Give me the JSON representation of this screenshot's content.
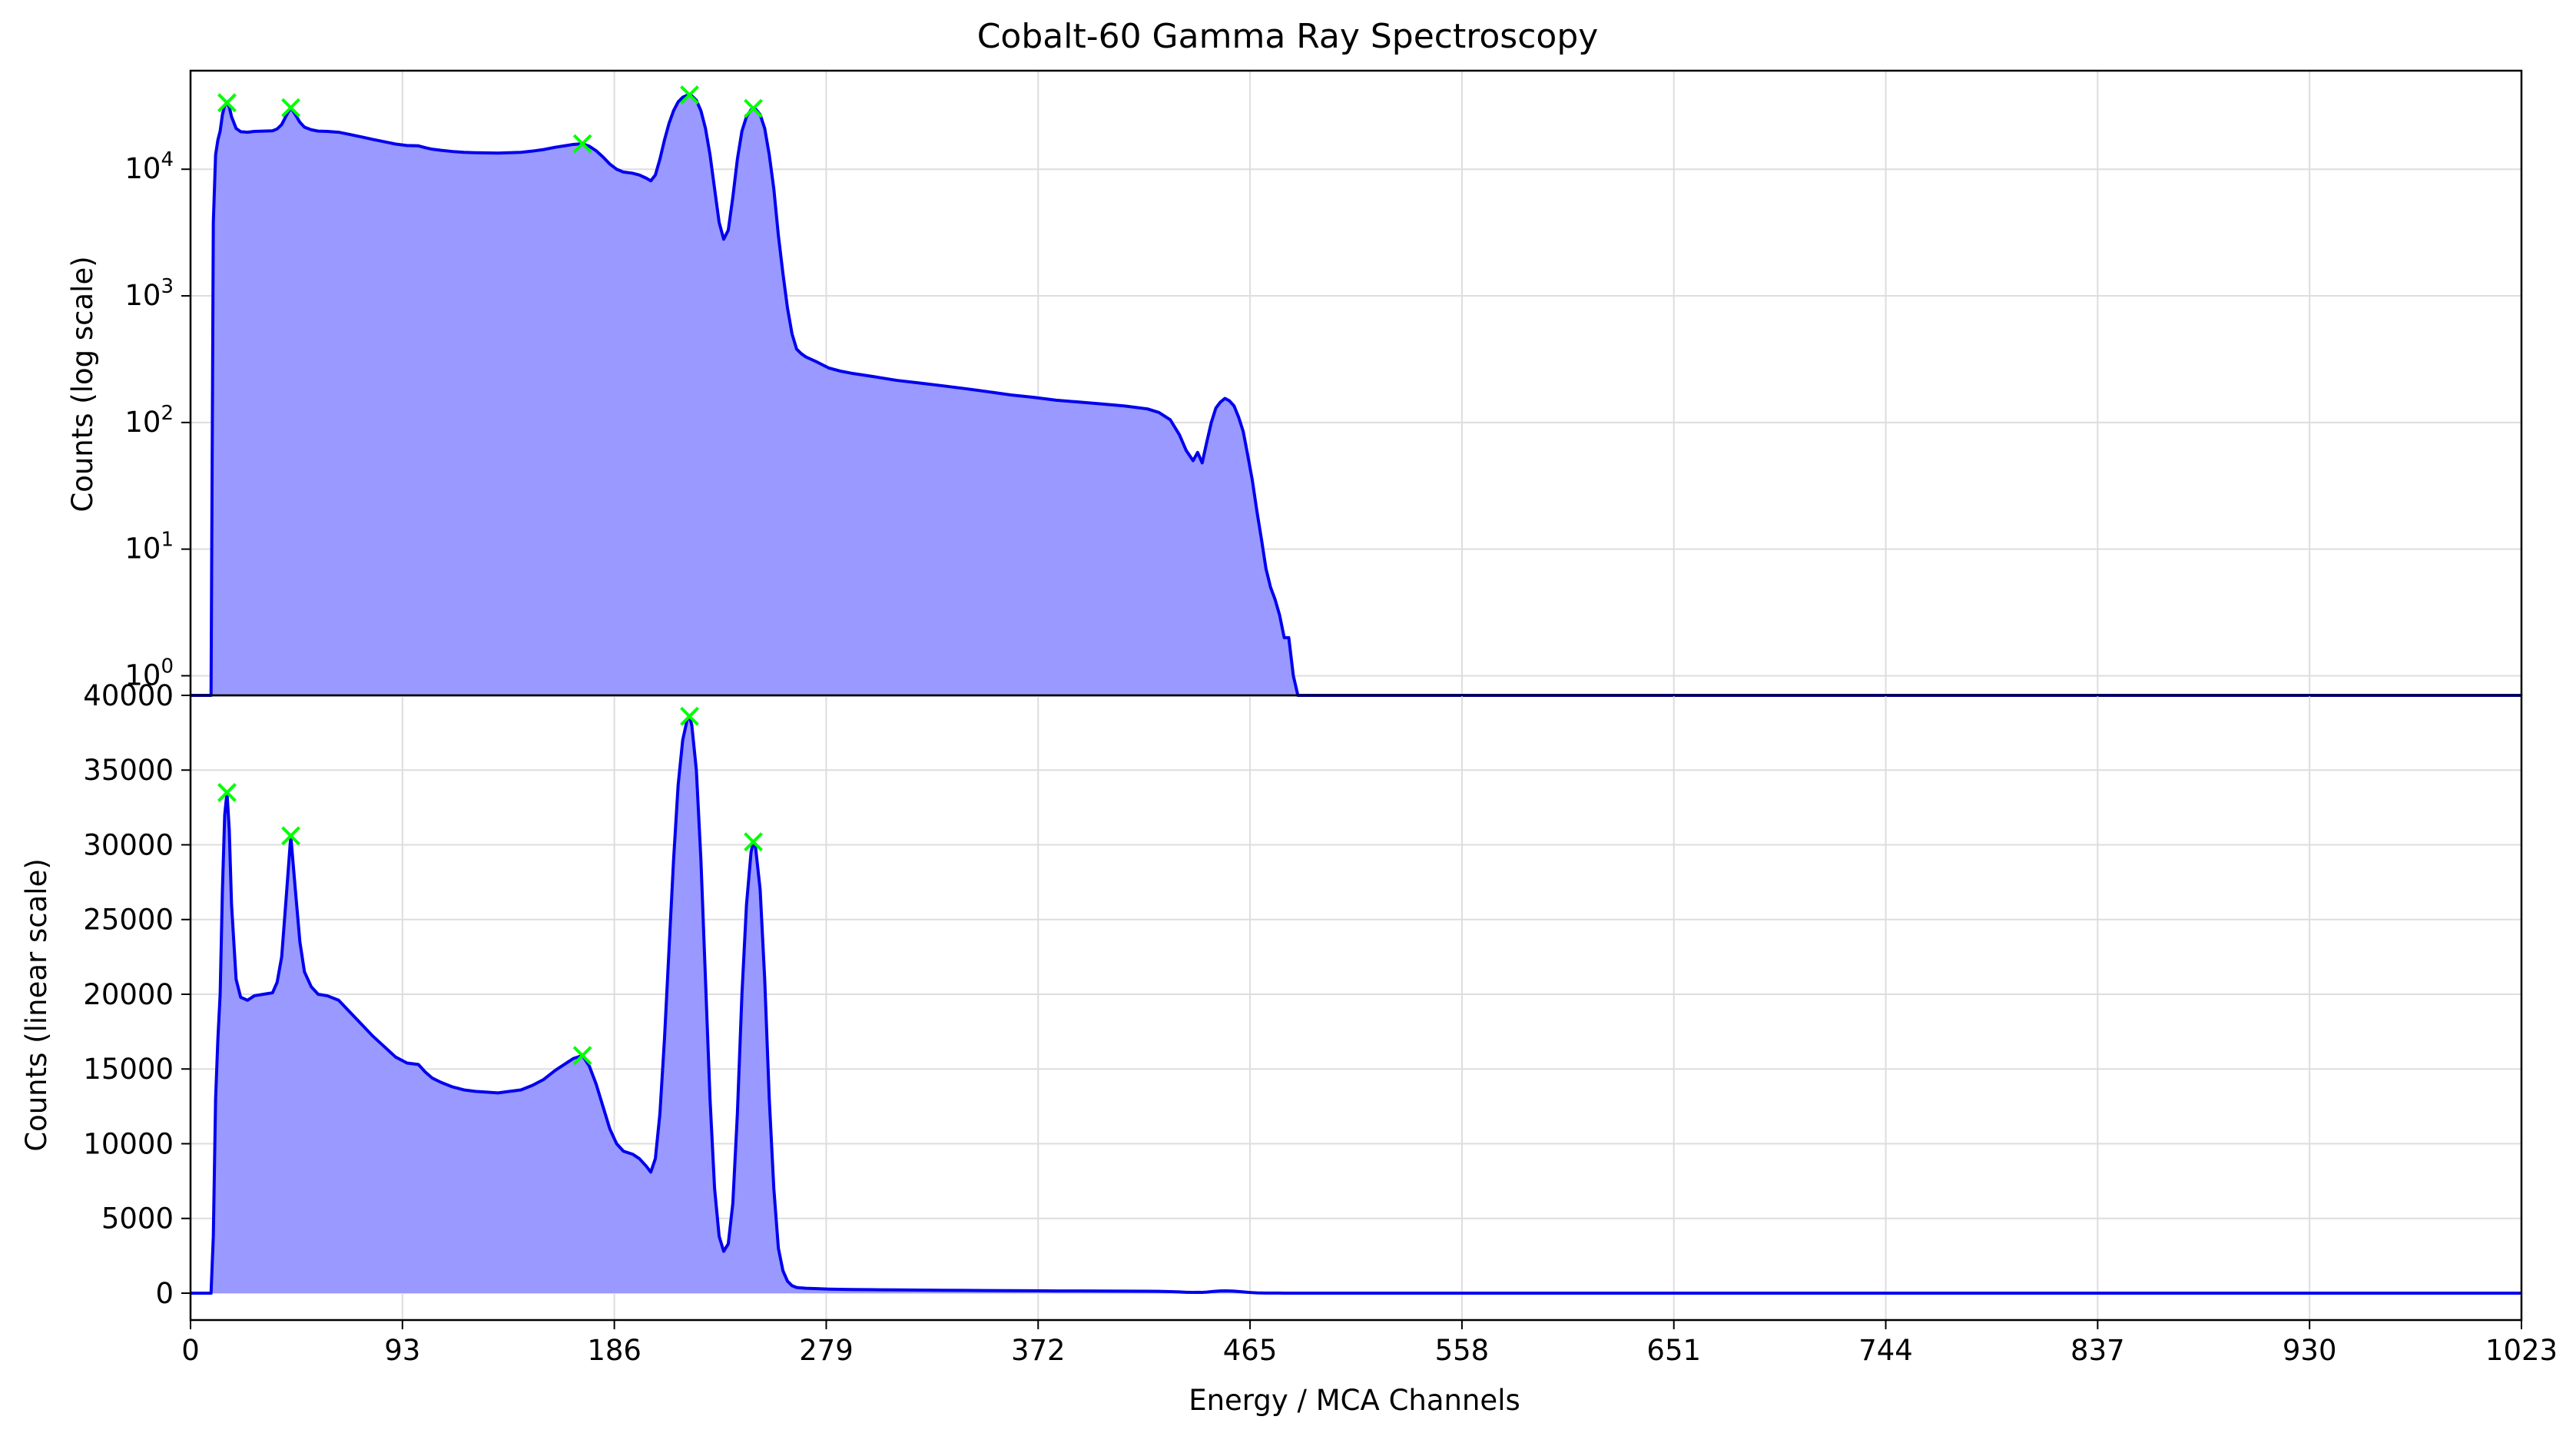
{
  "chart_data": {
    "type": "area",
    "title": "Cobalt-60 Gamma Ray Spectroscopy",
    "xlabel": "Energy / MCA Channels",
    "xlim": [
      0,
      1023
    ],
    "x_ticks": [
      0,
      93,
      186,
      279,
      372,
      465,
      558,
      651,
      744,
      837,
      930,
      1023
    ],
    "grid": true,
    "colors": {
      "line": "#0000ee",
      "fill": "#9999ff",
      "peak_marker": "#00ff00"
    },
    "peaks": [
      {
        "x": 16,
        "y": 33500
      },
      {
        "x": 44,
        "y": 30600
      },
      {
        "x": 172,
        "y": 15900
      },
      {
        "x": 219,
        "y": 38600
      },
      {
        "x": 247,
        "y": 30200
      }
    ],
    "spectrum_points": [
      [
        0,
        0
      ],
      [
        8,
        0
      ],
      [
        9,
        0
      ],
      [
        10,
        3800
      ],
      [
        11,
        13000
      ],
      [
        12,
        17000
      ],
      [
        13,
        20000
      ],
      [
        14,
        27000
      ],
      [
        15,
        32000
      ],
      [
        16,
        33500
      ],
      [
        17,
        31000
      ],
      [
        18,
        26000
      ],
      [
        20,
        21000
      ],
      [
        22,
        19800
      ],
      [
        25,
        19600
      ],
      [
        28,
        19900
      ],
      [
        32,
        20000
      ],
      [
        36,
        20100
      ],
      [
        38,
        20800
      ],
      [
        40,
        22500
      ],
      [
        42,
        26500
      ],
      [
        44,
        30600
      ],
      [
        46,
        27000
      ],
      [
        48,
        23500
      ],
      [
        50,
        21500
      ],
      [
        53,
        20500
      ],
      [
        56,
        20000
      ],
      [
        60,
        19900
      ],
      [
        65,
        19600
      ],
      [
        70,
        18800
      ],
      [
        75,
        18000
      ],
      [
        80,
        17200
      ],
      [
        85,
        16500
      ],
      [
        90,
        15800
      ],
      [
        95,
        15400
      ],
      [
        100,
        15300
      ],
      [
        103,
        14800
      ],
      [
        106,
        14400
      ],
      [
        110,
        14100
      ],
      [
        115,
        13800
      ],
      [
        120,
        13600
      ],
      [
        125,
        13500
      ],
      [
        130,
        13450
      ],
      [
        135,
        13400
      ],
      [
        140,
        13500
      ],
      [
        145,
        13600
      ],
      [
        150,
        13900
      ],
      [
        155,
        14300
      ],
      [
        160,
        14900
      ],
      [
        165,
        15400
      ],
      [
        168,
        15700
      ],
      [
        172,
        15900
      ],
      [
        175,
        15200
      ],
      [
        178,
        14000
      ],
      [
        181,
        12500
      ],
      [
        184,
        11000
      ],
      [
        187,
        10000
      ],
      [
        190,
        9500
      ],
      [
        194,
        9300
      ],
      [
        197,
        9000
      ],
      [
        200,
        8500
      ],
      [
        202,
        8100
      ],
      [
        204,
        9000
      ],
      [
        206,
        12000
      ],
      [
        208,
        17000
      ],
      [
        210,
        23000
      ],
      [
        212,
        29000
      ],
      [
        214,
        34000
      ],
      [
        216,
        37000
      ],
      [
        218,
        38400
      ],
      [
        219,
        38600
      ],
      [
        220,
        38000
      ],
      [
        222,
        35000
      ],
      [
        224,
        29000
      ],
      [
        226,
        21000
      ],
      [
        228,
        13000
      ],
      [
        230,
        7000
      ],
      [
        232,
        3800
      ],
      [
        234,
        2800
      ],
      [
        236,
        3300
      ],
      [
        238,
        6000
      ],
      [
        240,
        12000
      ],
      [
        242,
        20000
      ],
      [
        244,
        26000
      ],
      [
        246,
        29500
      ],
      [
        247,
        30200
      ],
      [
        248,
        29800
      ],
      [
        250,
        27000
      ],
      [
        252,
        21000
      ],
      [
        254,
        13000
      ],
      [
        256,
        7000
      ],
      [
        258,
        3000
      ],
      [
        260,
        1500
      ],
      [
        262,
        800
      ],
      [
        264,
        500
      ],
      [
        266,
        380
      ],
      [
        268,
        350
      ],
      [
        270,
        330
      ],
      [
        275,
        300
      ],
      [
        280,
        270
      ],
      [
        285,
        255
      ],
      [
        290,
        245
      ],
      [
        300,
        230
      ],
      [
        310,
        215
      ],
      [
        320,
        205
      ],
      [
        330,
        195
      ],
      [
        340,
        185
      ],
      [
        350,
        175
      ],
      [
        360,
        165
      ],
      [
        370,
        158
      ],
      [
        380,
        150
      ],
      [
        390,
        145
      ],
      [
        400,
        140
      ],
      [
        410,
        135
      ],
      [
        420,
        128
      ],
      [
        425,
        120
      ],
      [
        430,
        105
      ],
      [
        434,
        80
      ],
      [
        437,
        60
      ],
      [
        440,
        50
      ],
      [
        442,
        58
      ],
      [
        444,
        48
      ],
      [
        446,
        70
      ],
      [
        448,
        100
      ],
      [
        450,
        130
      ],
      [
        452,
        145
      ],
      [
        454,
        155
      ],
      [
        456,
        148
      ],
      [
        458,
        135
      ],
      [
        460,
        110
      ],
      [
        462,
        85
      ],
      [
        464,
        55
      ],
      [
        466,
        35
      ],
      [
        468,
        20
      ],
      [
        470,
        12
      ],
      [
        472,
        7
      ],
      [
        474,
        5
      ],
      [
        476,
        4
      ],
      [
        478,
        3
      ],
      [
        480,
        2
      ],
      [
        482,
        2
      ],
      [
        484,
        1
      ],
      [
        486,
        0
      ],
      [
        1023,
        0
      ]
    ],
    "panels": [
      {
        "ylabel": "Counts (log scale)",
        "scale": "log",
        "ylim": [
          0.7,
          60000
        ],
        "y_ticks": [
          {
            "value": 1,
            "base": "10",
            "exp": "0"
          },
          {
            "value": 10,
            "base": "10",
            "exp": "1"
          },
          {
            "value": 100,
            "base": "10",
            "exp": "2"
          },
          {
            "value": 1000,
            "base": "10",
            "exp": "3"
          },
          {
            "value": 10000,
            "base": "10",
            "exp": "4"
          }
        ]
      },
      {
        "ylabel": "Counts (linear scale)",
        "scale": "linear",
        "ylim": [
          -1800,
          40000
        ],
        "y_ticks": [
          0,
          5000,
          10000,
          15000,
          20000,
          25000,
          30000,
          35000,
          40000
        ]
      }
    ]
  }
}
